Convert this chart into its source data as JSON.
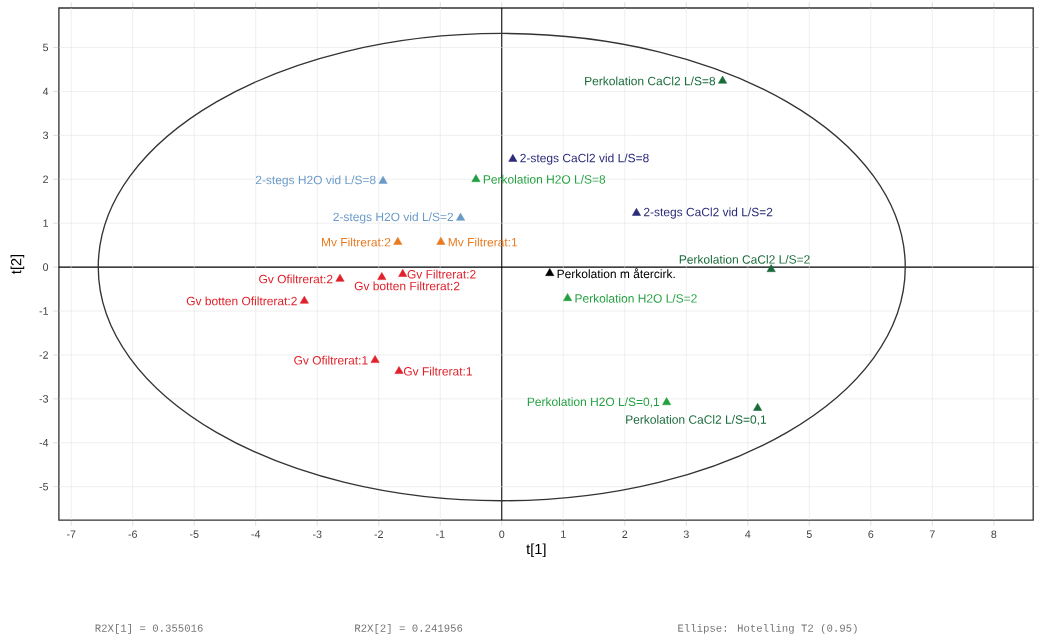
{
  "chart_data": {
    "type": "scatter",
    "xlabel": "t[1]",
    "ylabel": "t[2]",
    "xlim": [
      -7.2,
      8.64
    ],
    "ylim": [
      -5.76,
      5.9
    ],
    "xticks": [
      -7,
      -6,
      -5,
      -4,
      -3,
      -2,
      -1,
      0,
      1,
      2,
      3,
      4,
      5,
      6,
      7,
      8
    ],
    "yticks": [
      -5,
      -4,
      -3,
      -2,
      -1,
      0,
      1,
      2,
      3,
      4,
      5
    ],
    "grid": true,
    "marker": "triangle",
    "annotations": [
      "R2X[1] = 0.355016",
      "R2X[2] = 0.241956",
      "Ellipse: Hotelling T2 (0.95)"
    ],
    "series": [
      {
        "name": "Perkolation CaCl2 L/S=8",
        "color": "#1a6b3a",
        "x": [
          3.59
        ],
        "values": [
          4.24
        ]
      },
      {
        "name": "2-stegs CaCl2 vid L/S=8",
        "color": "#2b2b7a",
        "x": [
          0.18
        ],
        "values": [
          2.46
        ]
      },
      {
        "name": "Perkolation H2O L/S=8",
        "color": "#22a040",
        "x": [
          -0.42
        ],
        "values": [
          2.0
        ]
      },
      {
        "name": "2-stegs H2O vid L/S=8",
        "color": "#6a9ac8",
        "x": [
          -1.93
        ],
        "values": [
          1.96
        ]
      },
      {
        "name": "2-stegs H2O vid L/S=2",
        "color": "#6a9ac8",
        "x": [
          -0.67
        ],
        "values": [
          1.12
        ]
      },
      {
        "name": "2-stegs CaCl2 vid L/S=2",
        "color": "#2b2b7a",
        "x": [
          2.19
        ],
        "values": [
          1.23
        ]
      },
      {
        "name": "Mv Filtrerat:2",
        "color": "#e87a20",
        "x": [
          -1.69
        ],
        "values": [
          0.57
        ]
      },
      {
        "name": "Mv Filtrerat:1",
        "color": "#e87a20",
        "x": [
          -0.99
        ],
        "values": [
          0.57
        ]
      },
      {
        "name": "Perkolation CaCl2 L/S=2",
        "color": "#1a6b3a",
        "x": [
          4.38
        ],
        "values": [
          -0.05
        ]
      },
      {
        "name": "Perkolation m återcirk.",
        "color": "#000000",
        "x": [
          0.78
        ],
        "values": [
          -0.14
        ]
      },
      {
        "name": "Perkolation H2O L/S=2",
        "color": "#22a040",
        "x": [
          1.07
        ],
        "values": [
          -0.71
        ]
      },
      {
        "name": "Gv Ofiltrerat:2",
        "color": "#e0202a",
        "x": [
          -2.63
        ],
        "values": [
          -0.27
        ]
      },
      {
        "name": "Gv botten Filtrerat:2",
        "color": "#e0202a",
        "x": [
          -1.95
        ],
        "values": [
          -0.23
        ]
      },
      {
        "name": "Gv Filtrerat:2",
        "color": "#e0202a",
        "x": [
          -1.61
        ],
        "values": [
          -0.16
        ]
      },
      {
        "name": "Gv botten Ofiltrerat:2",
        "color": "#e0202a",
        "x": [
          -3.21
        ],
        "values": [
          -0.77
        ]
      },
      {
        "name": "Gv Ofiltrerat:1",
        "color": "#e0202a",
        "x": [
          -2.06
        ],
        "values": [
          -2.12
        ]
      },
      {
        "name": "Gv Filtrerat:1",
        "color": "#e0202a",
        "x": [
          -1.67
        ],
        "values": [
          -2.37
        ]
      },
      {
        "name": "Perkolation H2O L/S=0,1",
        "color": "#22a040",
        "x": [
          2.68
        ],
        "values": [
          -3.08
        ]
      },
      {
        "name": "Perkolation CaCl2 L/S=0,1",
        "color": "#1a6b3a",
        "x": [
          4.16
        ],
        "values": [
          -3.21
        ]
      }
    ]
  }
}
